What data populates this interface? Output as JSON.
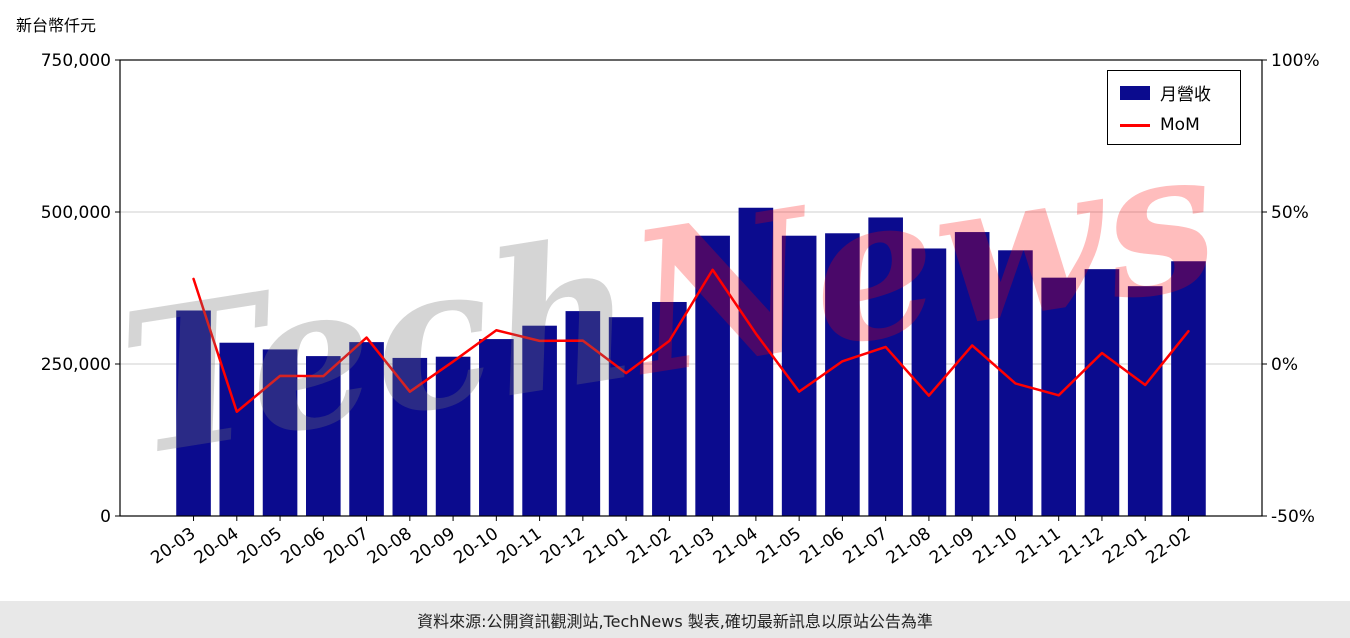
{
  "watermark": {
    "left": "Tech",
    "right": "News"
  },
  "footer": {
    "text": "資料來源:公開資訊觀測站,TechNews 製表,確切最新訊息以原站公告為準"
  },
  "chart_data": {
    "type": "bar",
    "title": "",
    "ylabel": "新台幣仟元",
    "categories": [
      "20-03",
      "20-04",
      "20-05",
      "20-06",
      "20-07",
      "20-08",
      "20-09",
      "20-10",
      "20-11",
      "20-12",
      "21-01",
      "21-02",
      "21-03",
      "21-04",
      "21-05",
      "21-06",
      "21-07",
      "21-08",
      "21-09",
      "21-10",
      "21-11",
      "21-12",
      "22-01",
      "22-02"
    ],
    "series": [
      {
        "name": "月營收",
        "type": "bar",
        "axis": "left",
        "color": "#0b0b8e",
        "values": [
          338000,
          285000,
          274000,
          263000,
          286000,
          260000,
          262000,
          291000,
          313000,
          337000,
          327000,
          352000,
          461000,
          507000,
          461000,
          465000,
          491000,
          440000,
          467000,
          437000,
          392000,
          406000,
          378000,
          419000
        ]
      },
      {
        "name": "MoM",
        "type": "line",
        "axis": "right",
        "color": "#ff0000",
        "unit": "%",
        "values": [
          28.0,
          -15.7,
          -3.9,
          -4.0,
          8.7,
          -9.1,
          0.8,
          11.1,
          7.6,
          7.7,
          -3.0,
          7.6,
          31.0,
          10.0,
          -9.1,
          0.9,
          5.6,
          -10.4,
          6.1,
          -6.4,
          -10.3,
          3.6,
          -6.9,
          10.8
        ]
      }
    ],
    "left_axis": {
      "min": 0,
      "max": 750000,
      "ticks": [
        0,
        250000,
        500000,
        750000
      ],
      "tick_labels": [
        "0",
        "250,000",
        "500,000",
        "750,000"
      ]
    },
    "right_axis": {
      "min": -50,
      "max": 100,
      "ticks": [
        -50,
        0,
        50,
        100
      ],
      "tick_labels": [
        "-50%",
        "0%",
        "50%",
        "100%"
      ]
    },
    "grid": true,
    "legend_position": "upper right"
  }
}
